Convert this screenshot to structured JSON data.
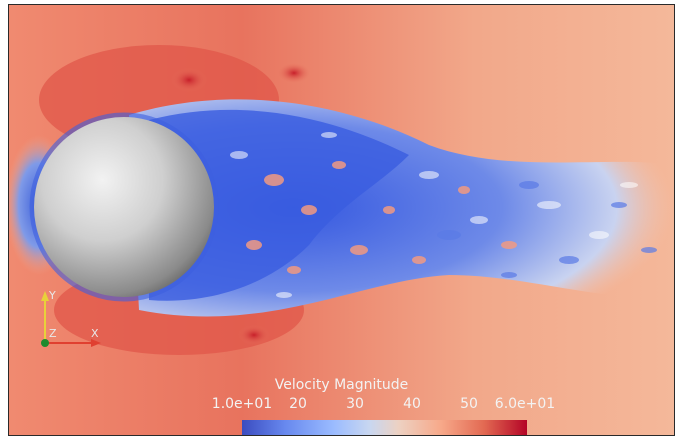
{
  "colorbar": {
    "title": "Velocity Magnitude",
    "min_label": "1.0e+01",
    "max_label": "6.0e+01",
    "ticks": [
      "20",
      "30",
      "40",
      "50"
    ],
    "min": 10,
    "max": 60
  },
  "axes_widget": {
    "y": "Y",
    "z": "Z",
    "x": "X"
  },
  "colors": {
    "freestream": "#f2a88a",
    "stagnation": "#4a6fd8",
    "wake_low": "#3d5fe0",
    "high_speed": "#e2574a",
    "sphere": "#bdbdbd"
  }
}
